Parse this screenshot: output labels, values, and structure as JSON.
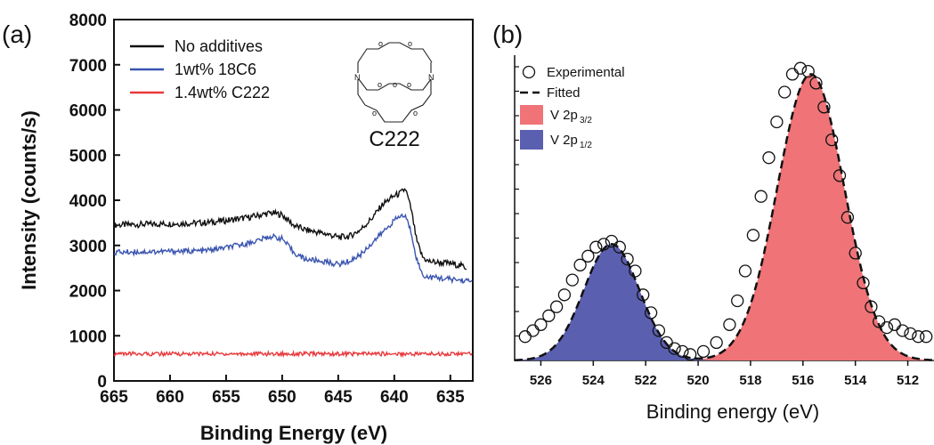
{
  "chart_data": [
    {
      "panel": "(a)",
      "type": "line",
      "title": "",
      "xlabel": "Binding Energy (eV)",
      "ylabel": "Intensity (counts/s)",
      "xlim": [
        665,
        633
      ],
      "ylim": [
        0,
        8000
      ],
      "x_ticks": [
        665,
        660,
        655,
        650,
        645,
        640,
        635
      ],
      "y_ticks": [
        0,
        1000,
        2000,
        3000,
        4000,
        5000,
        6000,
        7000,
        8000
      ],
      "legend_position": "top-left",
      "series": [
        {
          "name": "No additives",
          "color": "#111111",
          "x": [
            665,
            662,
            660,
            657,
            655,
            653,
            651,
            650,
            649,
            648,
            646,
            645,
            644,
            643,
            642,
            641,
            640,
            639.5,
            639,
            638.5,
            638,
            637.5,
            637,
            636,
            635,
            634,
            633.5
          ],
          "values": [
            3450,
            3470,
            3480,
            3500,
            3550,
            3620,
            3720,
            3680,
            3450,
            3350,
            3250,
            3180,
            3200,
            3350,
            3600,
            3920,
            4100,
            4150,
            4250,
            3800,
            3100,
            2750,
            2650,
            2620,
            2600,
            2550,
            2500
          ]
        },
        {
          "name": "1wt% 18C6",
          "color": "#3a55b0",
          "x": [
            665,
            662,
            660,
            657,
            655,
            653,
            651,
            650,
            649,
            648,
            646,
            645,
            644,
            643,
            642,
            641,
            640,
            639.5,
            639,
            638.5,
            638,
            637.5,
            637,
            636,
            635,
            634,
            633
          ],
          "values": [
            2850,
            2860,
            2870,
            2880,
            2950,
            3050,
            3200,
            3150,
            2850,
            2700,
            2630,
            2580,
            2650,
            2800,
            3050,
            3300,
            3550,
            3650,
            3650,
            3300,
            2700,
            2350,
            2300,
            2280,
            2250,
            2230,
            2200
          ]
        },
        {
          "name": "1.4wt% C222",
          "color": "#e8393c",
          "x": [
            665,
            660,
            655,
            650,
            645,
            640,
            635,
            633
          ],
          "values": [
            600,
            600,
            600,
            600,
            600,
            600,
            600,
            600
          ]
        }
      ],
      "annotations": [
        "C222"
      ]
    },
    {
      "panel": "(b)",
      "type": "area",
      "title": "",
      "xlabel": "Binding energy (eV)",
      "ylabel": "",
      "xlim": [
        527,
        511
      ],
      "x_ticks": [
        526,
        524,
        522,
        520,
        518,
        516,
        514,
        512
      ],
      "y_tick_labels": false,
      "legend_position": "top-left",
      "legend": [
        {
          "label": "Experimental",
          "marker": "open-circle"
        },
        {
          "label": "Fitted",
          "marker": "dashed-line"
        },
        {
          "label": "V 2p",
          "sub": "3/2",
          "color": "#f07377"
        },
        {
          "label": "V 2p",
          "sub": "1/2",
          "color": "#5a5fb0"
        }
      ],
      "series": [
        {
          "name": "V 2p3/2",
          "color": "#f07377",
          "center": 515.7,
          "height": 0.96,
          "fwhm": 3.0
        },
        {
          "name": "V 2p1/2",
          "color": "#5a5fb0",
          "center": 523.3,
          "height": 0.39,
          "fwhm": 2.5
        }
      ],
      "experimental": {
        "x": [
          526.6,
          526.3,
          526.0,
          525.7,
          525.4,
          525.1,
          524.8,
          524.5,
          524.2,
          523.9,
          523.6,
          523.3,
          523.0,
          522.7,
          522.4,
          522.1,
          521.8,
          521.5,
          521.2,
          520.9,
          520.6,
          520.3,
          519.8,
          519.3,
          518.8,
          518.5,
          518.2,
          517.9,
          517.6,
          517.3,
          517.0,
          516.7,
          516.4,
          516.1,
          515.8,
          515.5,
          515.2,
          514.9,
          514.6,
          514.3,
          514.0,
          513.7,
          513.4,
          513.1,
          512.8,
          512.5,
          512.2,
          511.9,
          511.6,
          511.3
        ],
        "y": [
          0.08,
          0.1,
          0.12,
          0.15,
          0.18,
          0.22,
          0.27,
          0.32,
          0.35,
          0.38,
          0.39,
          0.4,
          0.38,
          0.34,
          0.3,
          0.22,
          0.16,
          0.1,
          0.06,
          0.04,
          0.03,
          0.02,
          0.03,
          0.06,
          0.12,
          0.2,
          0.3,
          0.42,
          0.55,
          0.68,
          0.8,
          0.9,
          0.96,
          0.98,
          0.97,
          0.93,
          0.85,
          0.74,
          0.62,
          0.48,
          0.36,
          0.26,
          0.18,
          0.13,
          0.11,
          0.12,
          0.1,
          0.09,
          0.08,
          0.08
        ]
      }
    }
  ]
}
